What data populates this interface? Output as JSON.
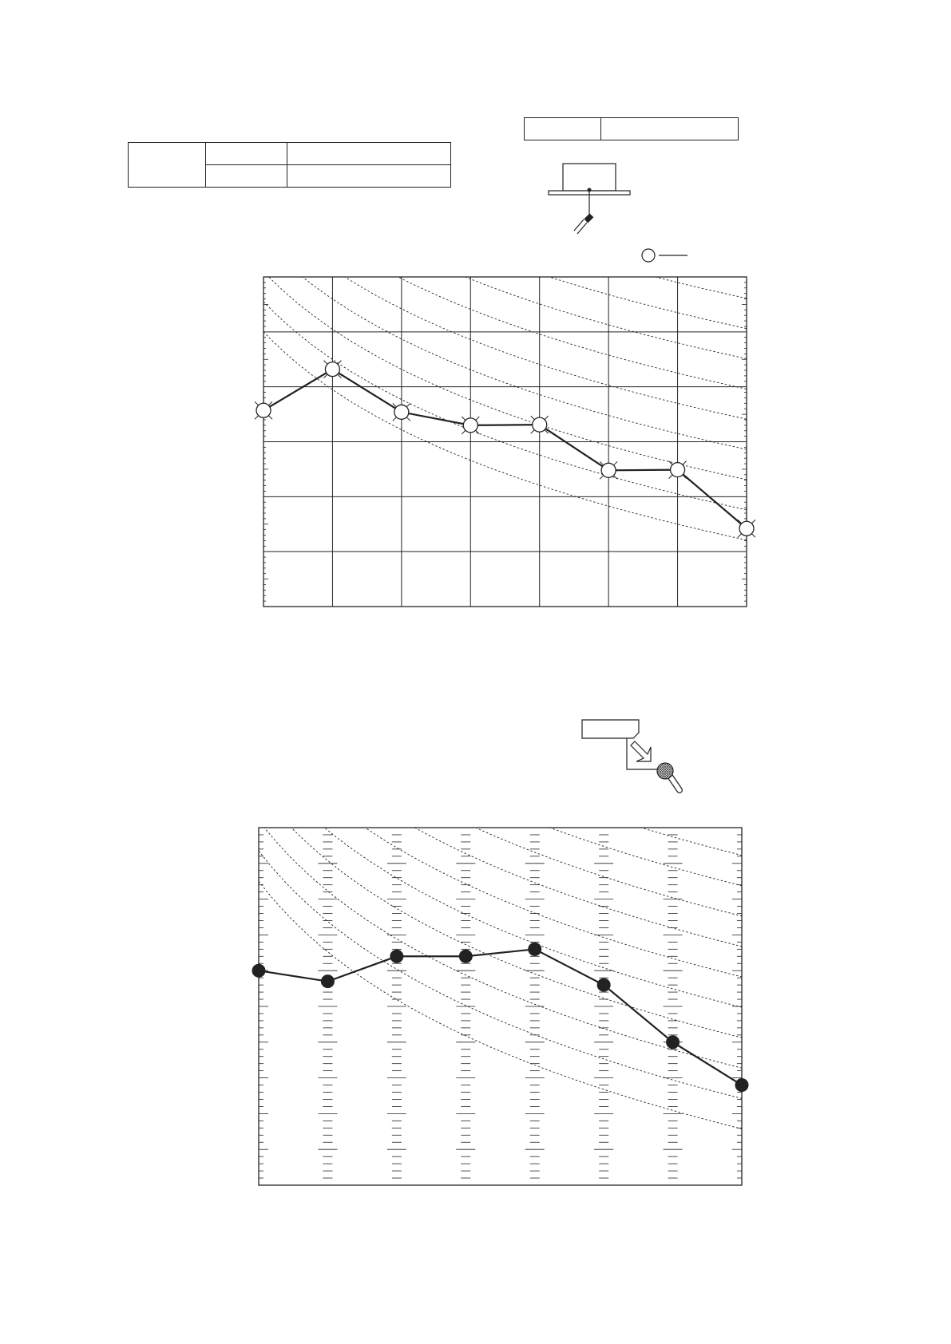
{
  "page": {
    "background": "#ffffff",
    "line_color": "#222222"
  },
  "header_table_left": {
    "rows": 2,
    "cols": 3,
    "cells": [
      "",
      "",
      "",
      "",
      "",
      ""
    ]
  },
  "header_table_right": {
    "cols": 2,
    "cells": [
      "",
      ""
    ]
  },
  "icons": {
    "device_top": "ceiling-unit-with-sensor-icon",
    "legend_top": "open-circle-legend-icon",
    "device_bottom": "panel-with-microphone-icon"
  },
  "chart_data": [
    {
      "type": "line",
      "x": [
        0,
        1,
        2,
        3,
        4,
        5,
        6,
        7
      ],
      "ylim": [
        0,
        6
      ],
      "xlim": [
        0,
        7
      ],
      "grid": true,
      "series": [
        {
          "values": [
            3.57,
            4.32,
            3.54,
            3.3,
            3.31,
            2.48,
            2.49,
            1.42
          ],
          "marker": "open-circle",
          "color": "#222222"
        }
      ],
      "reference_curves": 12,
      "tick_labels_x": [],
      "tick_labels_y": []
    },
    {
      "type": "line",
      "x": [
        0,
        1,
        2,
        3,
        4,
        5,
        6,
        7
      ],
      "ylim": [
        0,
        10
      ],
      "xlim": [
        0,
        7
      ],
      "grid": false,
      "series": [
        {
          "values": [
            6.0,
            5.7,
            6.4,
            6.4,
            6.6,
            5.6,
            4.0,
            2.8
          ],
          "marker": "filled-circle",
          "color": "#222222"
        }
      ],
      "reference_curves": 11,
      "tick_labels_x": [],
      "tick_labels_y": []
    }
  ]
}
